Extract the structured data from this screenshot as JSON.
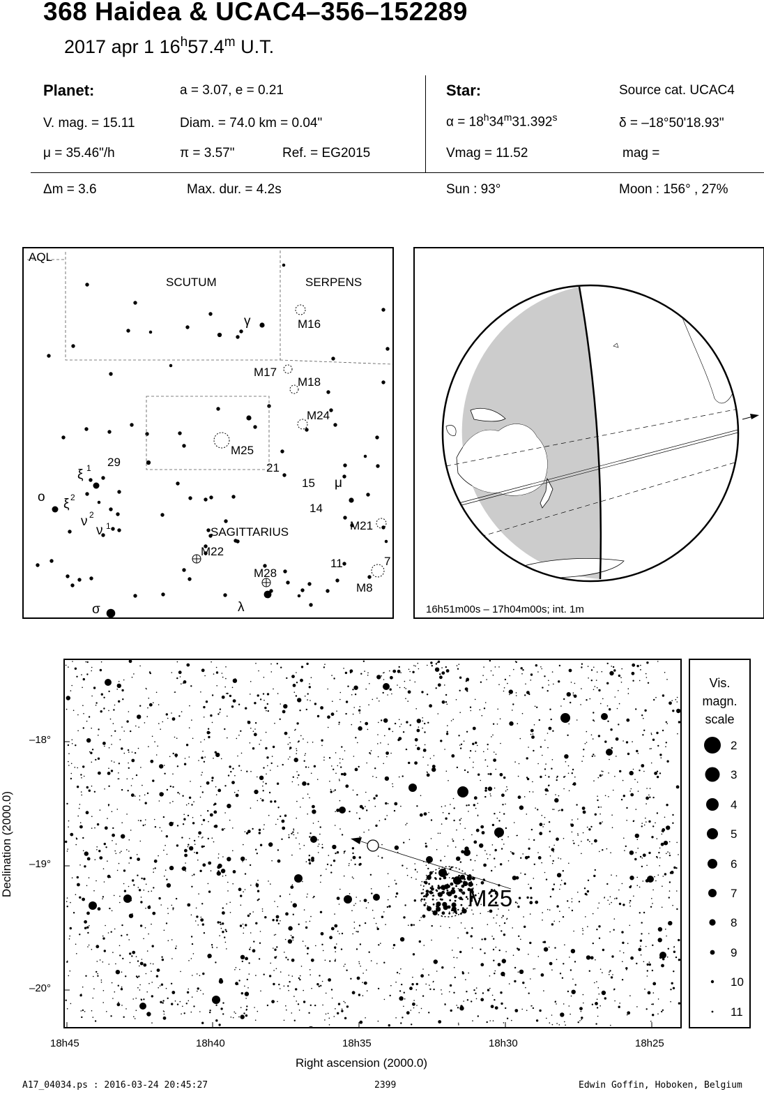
{
  "header": {
    "title": "368 Haidea  &  UCAC4–356–152289",
    "date": "2017 apr  1  16",
    "time_h": "h",
    "time_min": "57.4",
    "time_m": "m",
    "time_suffix": " U.T."
  },
  "planet": {
    "heading": "Planet:",
    "orbit": "a = 3.07, e = 0.21",
    "vmag": "V. mag. = 15.11",
    "diam": "Diam. = 74.0 km = 0.04\"",
    "mu": "μ =  35.46\"/h",
    "pi": "π =  3.57\"",
    "ref": "Ref. = EG2015"
  },
  "star": {
    "heading": "Star:",
    "source": "Source cat.  UCAC4",
    "ra_prefix": "α = 18",
    "ra_h": "h",
    "ra_min": "34",
    "ra_m": "m",
    "ra_sec": "31.392",
    "ra_s": "s",
    "dec": "δ = –18°50'18.93\"",
    "vmag": "Vmag = 11.52",
    "mag": "mag ="
  },
  "event": {
    "dm": "Δm = 3.6",
    "maxdur": "Max. dur. = 4.2s",
    "sun": "Sun :  93°",
    "moon": "Moon : 156° , 27%"
  },
  "constellation_map": {
    "labels": [
      "AQL",
      "SCUTUM",
      "SERPENS",
      "SAGITTARIUS"
    ],
    "objects": [
      "M16",
      "M17",
      "M18",
      "M24",
      "M25",
      "M21",
      "M22",
      "M28",
      "M8"
    ],
    "numbers": [
      "29",
      "21",
      "15",
      "14",
      "11",
      "7"
    ],
    "greek": [
      "γ",
      "μ",
      "ξ",
      "1",
      "ξ",
      "2",
      "ο",
      "ν",
      "2",
      "ν",
      "1",
      "λ",
      "σ"
    ]
  },
  "globe": {
    "caption": "16h51m00s – 17h04m00s; int.  1m"
  },
  "star_chart": {
    "cluster_label": "M25",
    "xlabel": "Right ascension (2000.0)",
    "ylabel": "Declination (2000.0)",
    "ra_ticks": [
      "18h45",
      "18h40",
      "18h35",
      "18h30",
      "18h25"
    ],
    "dec_ticks": [
      "–18°",
      "–19°",
      "–20°"
    ]
  },
  "legend": {
    "title_lines": [
      "Vis.",
      "magn.",
      "scale"
    ],
    "mags": [
      "2",
      "3",
      "4",
      "5",
      "6",
      "7",
      "8",
      "9",
      "10",
      "11"
    ]
  },
  "footer": {
    "file": "A17_04034.ps : 2016-03-24 20:45:27",
    "number": "2399",
    "author": "Edwin Goffin, Hoboken, Belgium"
  }
}
